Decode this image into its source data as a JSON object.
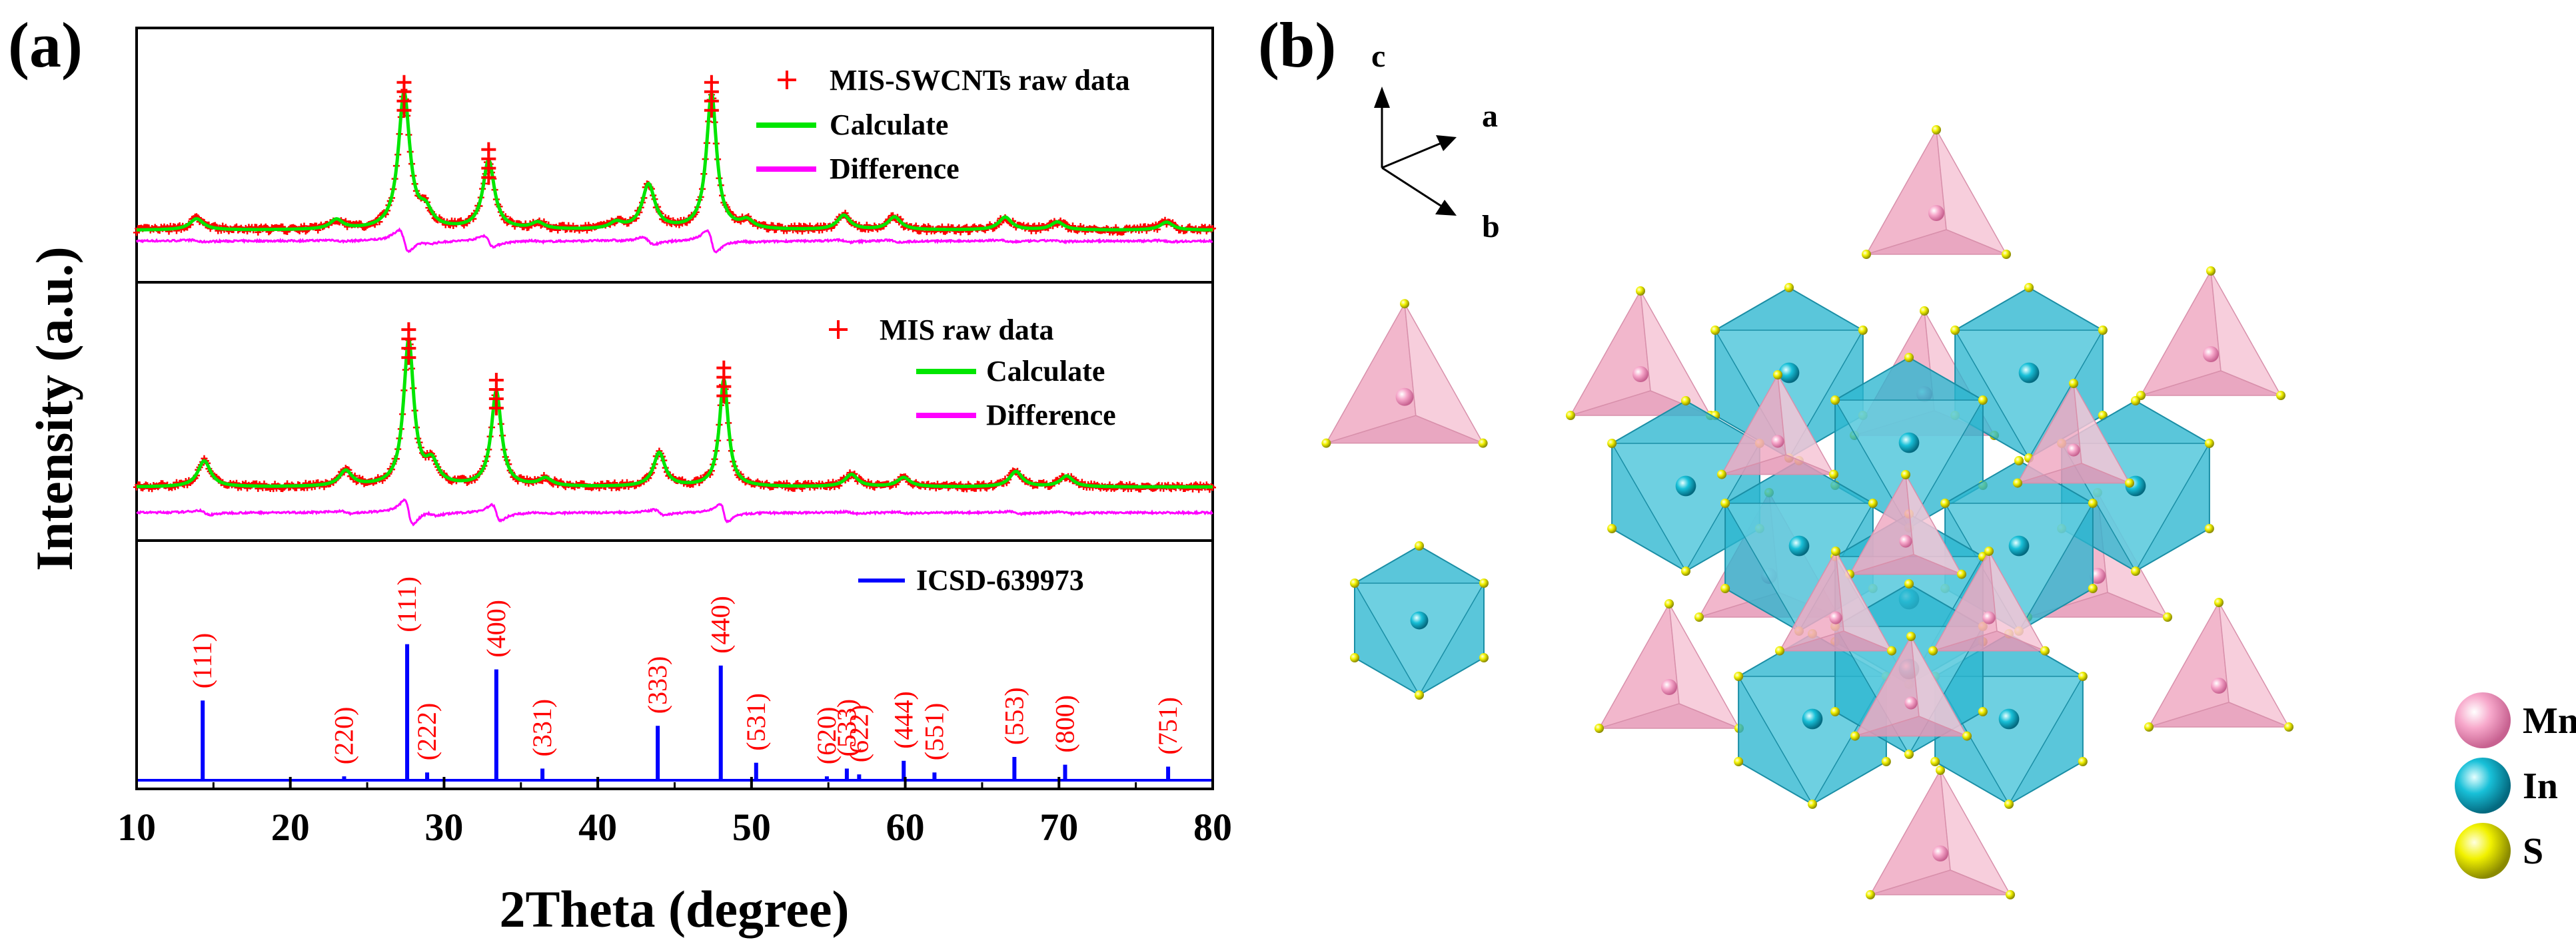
{
  "colors": {
    "raw": "#ff0000",
    "calc": "#00e600",
    "diff": "#ff00ff",
    "icsd": "#0000ff",
    "peak_label": "#ff0000",
    "mn": "#f7a8cb",
    "in": "#18c0d8",
    "s": "#f2f200",
    "tetra": "#f2b3c8",
    "octa": "#28b8d0"
  },
  "chart_data": {
    "type": "line",
    "panel_label": "(a)",
    "xlabel": "2Theta (degree)",
    "ylabel": "Intensity (a.u.)",
    "xlim": [
      10,
      80
    ],
    "xticks": [
      10,
      20,
      30,
      40,
      50,
      60,
      70,
      80
    ],
    "xtick_labels": [
      "10",
      "20",
      "30",
      "40",
      "50",
      "60",
      "70",
      "80"
    ],
    "subplots": [
      {
        "name": "mis-swcnts",
        "legend": [
          "MIS-SWCNTs raw data",
          "Calculate",
          "Difference"
        ],
        "baseline": 0.08,
        "peaks": [
          {
            "x": 13.9,
            "h": 0.07,
            "w": 0.55
          },
          {
            "x": 23.0,
            "h": 0.06,
            "w": 0.5
          },
          {
            "x": 27.4,
            "h": 0.85,
            "w": 0.45
          },
          {
            "x": 28.8,
            "h": 0.1,
            "w": 0.5
          },
          {
            "x": 32.9,
            "h": 0.43,
            "w": 0.45
          },
          {
            "x": 36.1,
            "h": 0.04,
            "w": 0.5
          },
          {
            "x": 41.2,
            "h": 0.04,
            "w": 0.5
          },
          {
            "x": 43.3,
            "h": 0.28,
            "w": 0.5
          },
          {
            "x": 47.4,
            "h": 0.85,
            "w": 0.4
          },
          {
            "x": 49.7,
            "h": 0.05,
            "w": 0.5
          },
          {
            "x": 56.0,
            "h": 0.09,
            "w": 0.5
          },
          {
            "x": 59.3,
            "h": 0.08,
            "w": 0.5
          },
          {
            "x": 66.5,
            "h": 0.08,
            "w": 0.5
          },
          {
            "x": 69.9,
            "h": 0.05,
            "w": 0.5
          },
          {
            "x": 77.0,
            "h": 0.05,
            "w": 0.5
          }
        ]
      },
      {
        "name": "mis",
        "legend": [
          "MIS raw data",
          "Calculate",
          "Difference"
        ],
        "baseline": 0.08,
        "peaks": [
          {
            "x": 14.4,
            "h": 0.17,
            "w": 0.5
          },
          {
            "x": 23.6,
            "h": 0.1,
            "w": 0.5
          },
          {
            "x": 27.7,
            "h": 0.95,
            "w": 0.4
          },
          {
            "x": 29.2,
            "h": 0.14,
            "w": 0.5
          },
          {
            "x": 33.4,
            "h": 0.62,
            "w": 0.4
          },
          {
            "x": 36.6,
            "h": 0.05,
            "w": 0.5
          },
          {
            "x": 44.0,
            "h": 0.22,
            "w": 0.45
          },
          {
            "x": 48.2,
            "h": 0.7,
            "w": 0.35
          },
          {
            "x": 56.5,
            "h": 0.08,
            "w": 0.5
          },
          {
            "x": 59.9,
            "h": 0.06,
            "w": 0.5
          },
          {
            "x": 67.2,
            "h": 0.1,
            "w": 0.5
          },
          {
            "x": 70.5,
            "h": 0.07,
            "w": 0.5
          }
        ]
      },
      {
        "name": "icsd",
        "legend": [
          "ICSD-639973"
        ],
        "bars": [
          {
            "x": 14.3,
            "h": 0.41,
            "label": "(111)"
          },
          {
            "x": 23.5,
            "h": 0.02,
            "label": "(220)"
          },
          {
            "x": 27.6,
            "h": 0.7,
            "label": "(111)"
          },
          {
            "x": 28.9,
            "h": 0.04,
            "label": "(222)"
          },
          {
            "x": 33.4,
            "h": 0.57,
            "label": "(400)"
          },
          {
            "x": 36.4,
            "h": 0.06,
            "label": "(331)"
          },
          {
            "x": 43.9,
            "h": 0.28,
            "label": "(333)"
          },
          {
            "x": 48.0,
            "h": 0.59,
            "label": "(440)"
          },
          {
            "x": 50.3,
            "h": 0.09,
            "label": "(531)"
          },
          {
            "x": 54.9,
            "h": 0.02,
            "label": "(620)"
          },
          {
            "x": 56.2,
            "h": 0.06,
            "label": "(533)"
          },
          {
            "x": 57.0,
            "h": 0.03,
            "label": "(622)"
          },
          {
            "x": 59.9,
            "h": 0.1,
            "label": "(444)"
          },
          {
            "x": 61.9,
            "h": 0.04,
            "label": "(551)"
          },
          {
            "x": 67.1,
            "h": 0.12,
            "label": "(553)"
          },
          {
            "x": 70.4,
            "h": 0.08,
            "label": "(800)"
          },
          {
            "x": 77.1,
            "h": 0.07,
            "label": "(751)"
          }
        ]
      }
    ]
  },
  "structure": {
    "panel_label": "(b)",
    "axes": [
      "c",
      "a",
      "b"
    ],
    "legend": [
      {
        "element": "Mn",
        "color": "#f7a8cb"
      },
      {
        "element": "In",
        "color": "#18c0d8"
      },
      {
        "element": "S",
        "color": "#f2f200"
      }
    ]
  }
}
